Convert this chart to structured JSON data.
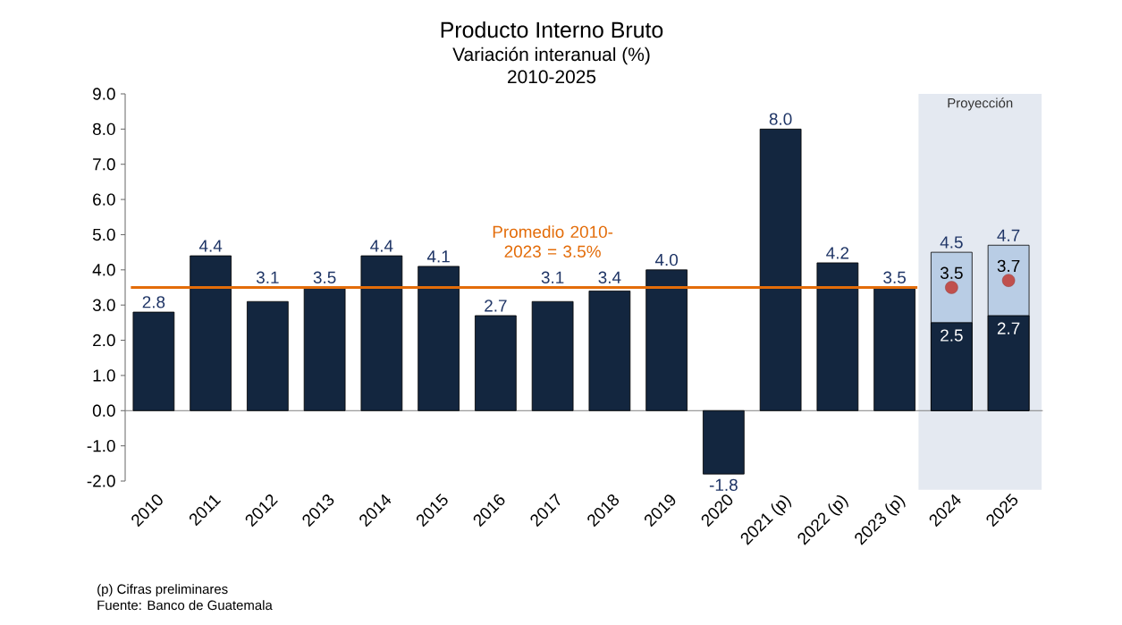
{
  "chart_data": {
    "type": "bar",
    "title": "Producto Interno Bruto",
    "subtitle": "Variación interanual (%)",
    "annotations": [
      "2010-2025",
      "(p) Cifras preliminares",
      "Fuente: Banco de Guatemala"
    ],
    "categories": [
      "2010",
      "2011",
      "2012",
      "2013",
      "2014",
      "2015",
      "2016",
      "2017",
      "2018",
      "2019",
      "2020",
      "2021 (p)",
      "2022 (p)",
      "2023 (p)",
      "2024",
      "2025"
    ],
    "series": [
      {
        "color": "#b9cde5",
        "values": [
          null,
          null,
          null,
          null,
          null,
          null,
          null,
          null,
          null,
          null,
          null,
          null,
          null,
          null,
          4.5,
          4.7
        ],
        "value_labels": [
          null,
          null,
          null,
          null,
          null,
          null,
          null,
          null,
          null,
          null,
          null,
          null,
          null,
          null,
          "4.5",
          "4.7"
        ]
      },
      {
        "color": "#13263f",
        "values": [
          2.8,
          4.4,
          3.1,
          3.5,
          4.4,
          4.1,
          2.7,
          3.1,
          3.4,
          4.0,
          -1.8,
          8.0,
          4.2,
          3.5,
          2.5,
          2.7
        ],
        "value_labels": [
          "2.8",
          "4.4",
          "3.1",
          "3.5",
          "4.4",
          "4.1",
          "2.7",
          "3.1",
          "3.4",
          "4.0",
          "-1.8",
          "8.0",
          "4.2",
          "3.5",
          "2.5",
          "2.7"
        ]
      },
      {
        "type": "scatter",
        "color": "#c0504d",
        "marker": "circle",
        "values": [
          null,
          null,
          null,
          null,
          null,
          null,
          null,
          null,
          null,
          null,
          null,
          null,
          null,
          null,
          3.5,
          3.7
        ],
        "value_labels": [
          null,
          null,
          null,
          null,
          null,
          null,
          null,
          null,
          null,
          null,
          null,
          null,
          null,
          null,
          "3.5",
          "3.7"
        ]
      }
    ],
    "ylim": [
      -2,
      9
    ],
    "yticks": [
      {
        "value": -2,
        "label": "-2.0"
      },
      {
        "value": -1,
        "label": "-1.0"
      },
      {
        "value": 0,
        "label": "0.0"
      },
      {
        "value": 1,
        "label": "1.0"
      },
      {
        "value": 2,
        "label": "2.0"
      },
      {
        "value": 3,
        "label": "3.0"
      },
      {
        "value": 4,
        "label": "4.0"
      },
      {
        "value": 5,
        "label": "5.0"
      },
      {
        "value": 6,
        "label": "6.0"
      },
      {
        "value": 7,
        "label": "7.0"
      },
      {
        "value": 8,
        "label": "8.0"
      },
      {
        "value": 9,
        "label": "9.0"
      }
    ],
    "ref_lines": [
      {
        "axis": "y",
        "value": 3.5,
        "label": "Promedio 2010-2023 = 3.5%",
        "color": "#e36c09"
      }
    ],
    "bands": [
      {
        "axis": "x",
        "from": "2024",
        "to": "2025",
        "label": "Proyección",
        "color": "#e4e9f1"
      }
    ]
  }
}
